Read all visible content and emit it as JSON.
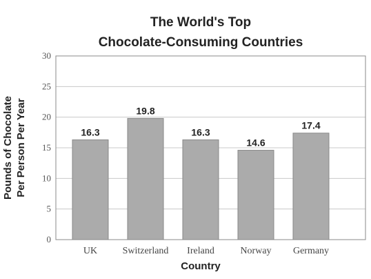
{
  "chart_data": {
    "type": "bar",
    "title_lines": [
      "The World's Top",
      "Chocolate-Consuming Countries"
    ],
    "xlabel": "Country",
    "ylabel_lines": [
      "Pounds of Chocolate",
      "Per Person Per Year"
    ],
    "categories": [
      "UK",
      "Switzerland",
      "Ireland",
      "Norway",
      "Germany"
    ],
    "values": [
      16.3,
      19.8,
      16.3,
      14.6,
      17.4
    ],
    "value_labels": [
      "16.3",
      "19.8",
      "16.3",
      "14.6",
      "17.4"
    ],
    "ylim": [
      0,
      30
    ],
    "yticks": [
      0,
      5,
      10,
      15,
      20,
      25,
      30
    ],
    "grid": true,
    "legend": "none",
    "bar_color": "#ababab"
  }
}
